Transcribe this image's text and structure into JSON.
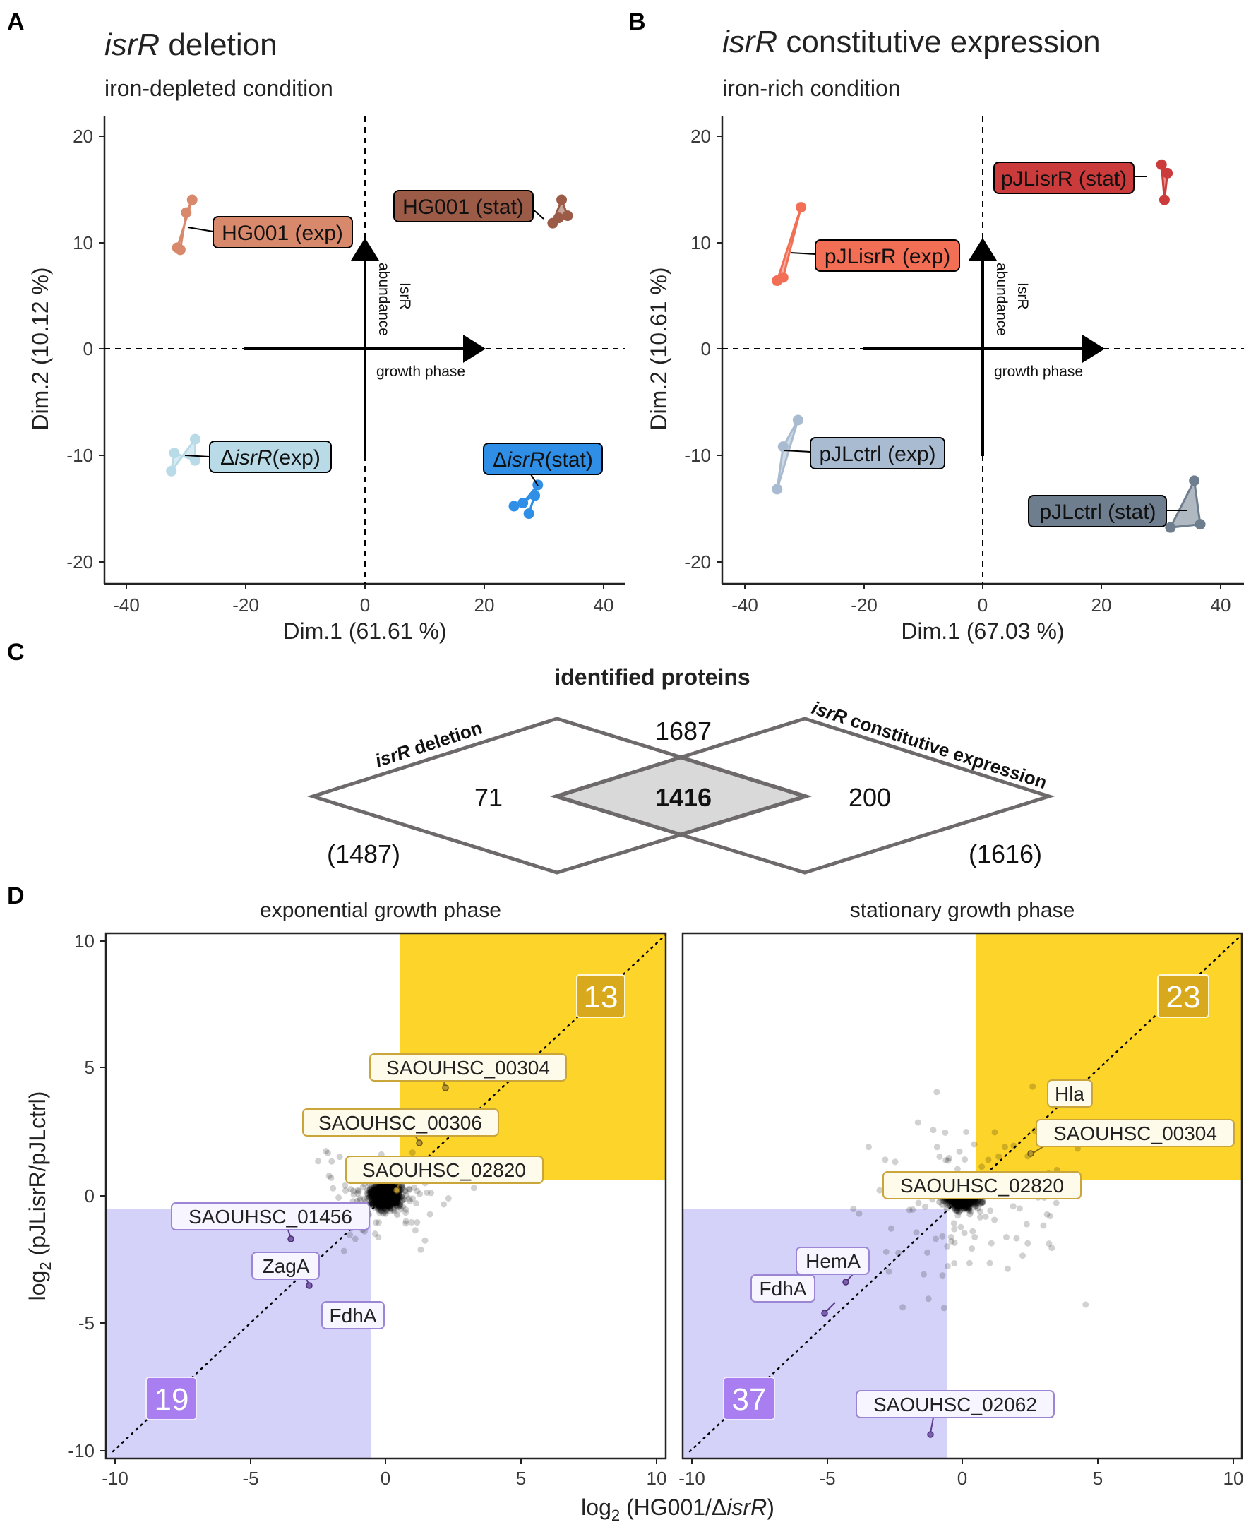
{
  "panels": {
    "A": {
      "letter": "A",
      "title_italic": "isrR",
      "title_rest": " deletion",
      "subtitle": "iron-depleted condition",
      "xlabel": "Dim.1 (61.61 %)",
      "ylabel": "Dim.2 (10.12 %)",
      "arrow_y_label_1": "IsrR",
      "arrow_y_label_2": "abundance",
      "arrow_x_label": "growth phase",
      "xticks": [
        "-40",
        "-20",
        "0",
        "20",
        "40"
      ],
      "yticks": [
        "20",
        "10",
        "0",
        "-10",
        "-20"
      ],
      "labels": {
        "hg_exp": "HG001 (exp)",
        "hg_stat": "HG001 (stat)",
        "d_exp_delta": "Δ",
        "d_exp_it": "isrR",
        "d_exp_rest": "(exp)",
        "d_stat_delta": "Δ",
        "d_stat_it": "isrR",
        "d_stat_rest": "(stat)"
      }
    },
    "B": {
      "letter": "B",
      "title_italic": "isrR",
      "title_rest": " constitutive expression",
      "subtitle": "iron-rich condition",
      "xlabel": "Dim.1 (67.03 %)",
      "ylabel": "Dim.2 (10.61 %)",
      "arrow_y_label_1": "IsrR",
      "arrow_y_label_2": "abundance",
      "arrow_x_label": "growth phase",
      "xticks": [
        "-40",
        "-20",
        "0",
        "20",
        "40"
      ],
      "yticks": [
        "20",
        "10",
        "0",
        "-10",
        "-20"
      ],
      "labels": {
        "p_exp": "pJLisrR (exp)",
        "p_stat": "pJLisrR (stat)",
        "c_exp": "pJLctrl (exp)",
        "c_stat": "pJLctrl (stat)"
      }
    },
    "C": {
      "letter": "C",
      "title": "identified proteins",
      "left_label_it": "isrR",
      "left_label_rest": " deletion",
      "right_label_it": "isrR",
      "right_label_rest": " constitutive expression",
      "left_only": "71",
      "both": "1416",
      "right_only": "200",
      "union": "1687",
      "left_total": "(1487)",
      "right_total": "(1616)"
    },
    "D": {
      "letter": "D",
      "facet_left": "exponential growth phase",
      "facet_right": "stationary growth phase",
      "ylabel_pre": "log",
      "ylabel_sub": "2",
      "ylabel_post": " (pJLisrR/pJLctrl)",
      "xlabel_pre": "log",
      "xlabel_sub": "2",
      "xlabel_mid": " (HG001/Δ",
      "xlabel_it": "isrR",
      "xlabel_post": ")",
      "xticks": [
        "-10",
        "-5",
        "0",
        "5",
        "10"
      ],
      "yticks": [
        "10",
        "5",
        "0",
        "-5",
        "-10"
      ],
      "left": {
        "count_up": "13",
        "count_down": "19",
        "up_labels": [
          "SAOUHSC_00304",
          "SAOUHSC_00306",
          "SAOUHSC_02820"
        ],
        "down_labels": [
          "SAOUHSC_01456",
          "ZagA",
          "FdhA"
        ]
      },
      "right": {
        "count_up": "23",
        "count_down": "37",
        "up_labels": [
          "Hla",
          "SAOUHSC_00304",
          "SAOUHSC_02820"
        ],
        "down_labels": [
          "HemA",
          "FdhA",
          "SAOUHSC_02062"
        ]
      }
    }
  },
  "colors": {
    "hg_exp": "#d9896b",
    "hg_stat": "#9b5b47",
    "d_exp": "#b9dbe8",
    "d_stat": "#2f8fe6",
    "p_exp": "#f26f55",
    "p_stat": "#cc3b3b",
    "c_exp": "#a9bbd0",
    "c_stat": "#6f7e8e",
    "yellow": "#fcd42a",
    "lavender": "#d4d2f8",
    "up_text": "#8c6e14",
    "down_text": "#5c3d8f",
    "count_up_bg": "#d9a91d",
    "count_down_bg": "#a87ef0"
  },
  "chart_data": [
    {
      "type": "scatter",
      "title": "isrR deletion — iron-depleted condition",
      "xlabel": "Dim.1 (61.61 %)",
      "ylabel": "Dim.2 (10.12 %)",
      "xlim": [
        -44,
        44
      ],
      "ylim": [
        -21,
        21
      ],
      "series": [
        {
          "name": "HG001 (exp)",
          "x": [
            -31.5,
            -29,
            -30,
            -31
          ],
          "y": [
            9.5,
            14,
            12.8,
            9.3
          ]
        },
        {
          "name": "HG001 (stat)",
          "x": [
            31.5,
            33,
            34,
            32.5
          ],
          "y": [
            11.8,
            14,
            12.5,
            12.3
          ]
        },
        {
          "name": "ΔisrR (exp)",
          "x": [
            -32.5,
            -28.5,
            -28.5,
            -32
          ],
          "y": [
            -11.5,
            -8.5,
            -10.5,
            -9.8
          ]
        },
        {
          "name": "ΔisrR (stat)",
          "x": [
            26.5,
            29,
            27.5,
            28.5,
            25
          ],
          "y": [
            -14.5,
            -12.8,
            -15.5,
            -13.8,
            -14.8
          ]
        }
      ]
    },
    {
      "type": "scatter",
      "title": "isrR constitutive expression — iron-rich condition",
      "xlabel": "Dim.1 (67.03 %)",
      "ylabel": "Dim.2 (10.61 %)",
      "xlim": [
        -44,
        44
      ],
      "ylim": [
        -21,
        21
      ],
      "series": [
        {
          "name": "pJLisrR (exp)",
          "x": [
            -30.5,
            -34.5,
            -33.5
          ],
          "y": [
            13.3,
            6.4,
            6.7
          ]
        },
        {
          "name": "pJLisrR (stat)",
          "x": [
            30,
            31,
            30.5
          ],
          "y": [
            17.3,
            16.5,
            14
          ]
        },
        {
          "name": "pJLctrl (exp)",
          "x": [
            -31,
            -33.5,
            -34.5
          ],
          "y": [
            -6.7,
            -9.2,
            -13.2
          ]
        },
        {
          "name": "pJLctrl (stat)",
          "x": [
            35.5,
            36.5,
            31.5
          ],
          "y": [
            -12.4,
            -16.5,
            -16.8
          ]
        }
      ]
    },
    {
      "type": "scatter",
      "title": "exponential growth phase",
      "xlabel": "log2 (HG001/ΔisrR)",
      "ylabel": "log2 (pJLisrR/pJLctrl)",
      "xlim": [
        -10.3,
        10.3
      ],
      "ylim": [
        -10.3,
        10.3
      ],
      "highlight_counts": {
        "up": 13,
        "down": 19
      },
      "labeled_points": [
        {
          "name": "SAOUHSC_00304",
          "x": 2.2,
          "y": 4.2
        },
        {
          "name": "SAOUHSC_00306",
          "x": 1.3,
          "y": 1.8
        },
        {
          "name": "SAOUHSC_02820",
          "x": 0.9,
          "y": 1.2
        },
        {
          "name": "SAOUHSC_01456",
          "x": -3.5,
          "y": -1.6
        },
        {
          "name": "ZagA",
          "x": -3.0,
          "y": -3.4
        },
        {
          "name": "FdhA",
          "x": -2.0,
          "y": -4.0
        }
      ]
    },
    {
      "type": "scatter",
      "title": "stationary growth phase",
      "xlabel": "log2 (HG001/ΔisrR)",
      "ylabel": "log2 (pJLisrR/pJLctrl)",
      "xlim": [
        -10.3,
        10.3
      ],
      "ylim": [
        -10.3,
        10.3
      ],
      "highlight_counts": {
        "up": 23,
        "down": 37
      },
      "labeled_points": [
        {
          "name": "Hla",
          "x": 3.1,
          "y": 3.3
        },
        {
          "name": "SAOUHSC_00304",
          "x": 2.5,
          "y": 1.8
        },
        {
          "name": "SAOUHSC_02820",
          "x": 0.4,
          "y": 0.5
        },
        {
          "name": "HemA",
          "x": -4.3,
          "y": -2.8
        },
        {
          "name": "FdhA",
          "x": -5.1,
          "y": -4.3
        },
        {
          "name": "SAOUHSC_02062",
          "x": -1.2,
          "y": -9.6
        }
      ]
    }
  ]
}
